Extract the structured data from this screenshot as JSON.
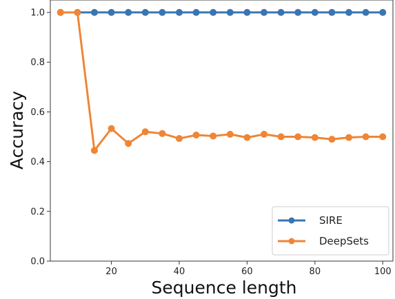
{
  "chart_data": {
    "type": "line",
    "title": "",
    "xlabel": "Sequence length",
    "ylabel": "Accuracy",
    "xlim": [
      2,
      103
    ],
    "ylim": [
      0.0,
      1.05
    ],
    "x_ticks": [
      20,
      40,
      60,
      80,
      100
    ],
    "y_ticks": [
      0.0,
      0.2,
      0.4,
      0.6,
      0.8,
      1.0
    ],
    "x_tick_labels": [
      "20",
      "40",
      "60",
      "80",
      "100"
    ],
    "y_tick_labels": [
      "0.0",
      "0.2",
      "0.4",
      "0.6",
      "0.8",
      "1.0"
    ],
    "grid": false,
    "legend_position": "bottom-right",
    "x": [
      5,
      10,
      15,
      20,
      25,
      30,
      35,
      40,
      45,
      50,
      55,
      60,
      65,
      70,
      75,
      80,
      85,
      90,
      95,
      100
    ],
    "series": [
      {
        "name": "SIRE",
        "color": "#3a75b0",
        "values": [
          1.0,
          1.0,
          1.0,
          1.0,
          1.0,
          1.0,
          1.0,
          1.0,
          1.0,
          1.0,
          1.0,
          1.0,
          1.0,
          1.0,
          1.0,
          1.0,
          1.0,
          1.0,
          1.0,
          1.0
        ]
      },
      {
        "name": "DeepSets",
        "color": "#ef8535",
        "values": [
          1.0,
          1.0,
          0.445,
          0.533,
          0.473,
          0.52,
          0.513,
          0.493,
          0.507,
          0.503,
          0.51,
          0.497,
          0.51,
          0.5,
          0.5,
          0.497,
          0.49,
          0.497,
          0.5,
          0.5
        ]
      }
    ]
  }
}
